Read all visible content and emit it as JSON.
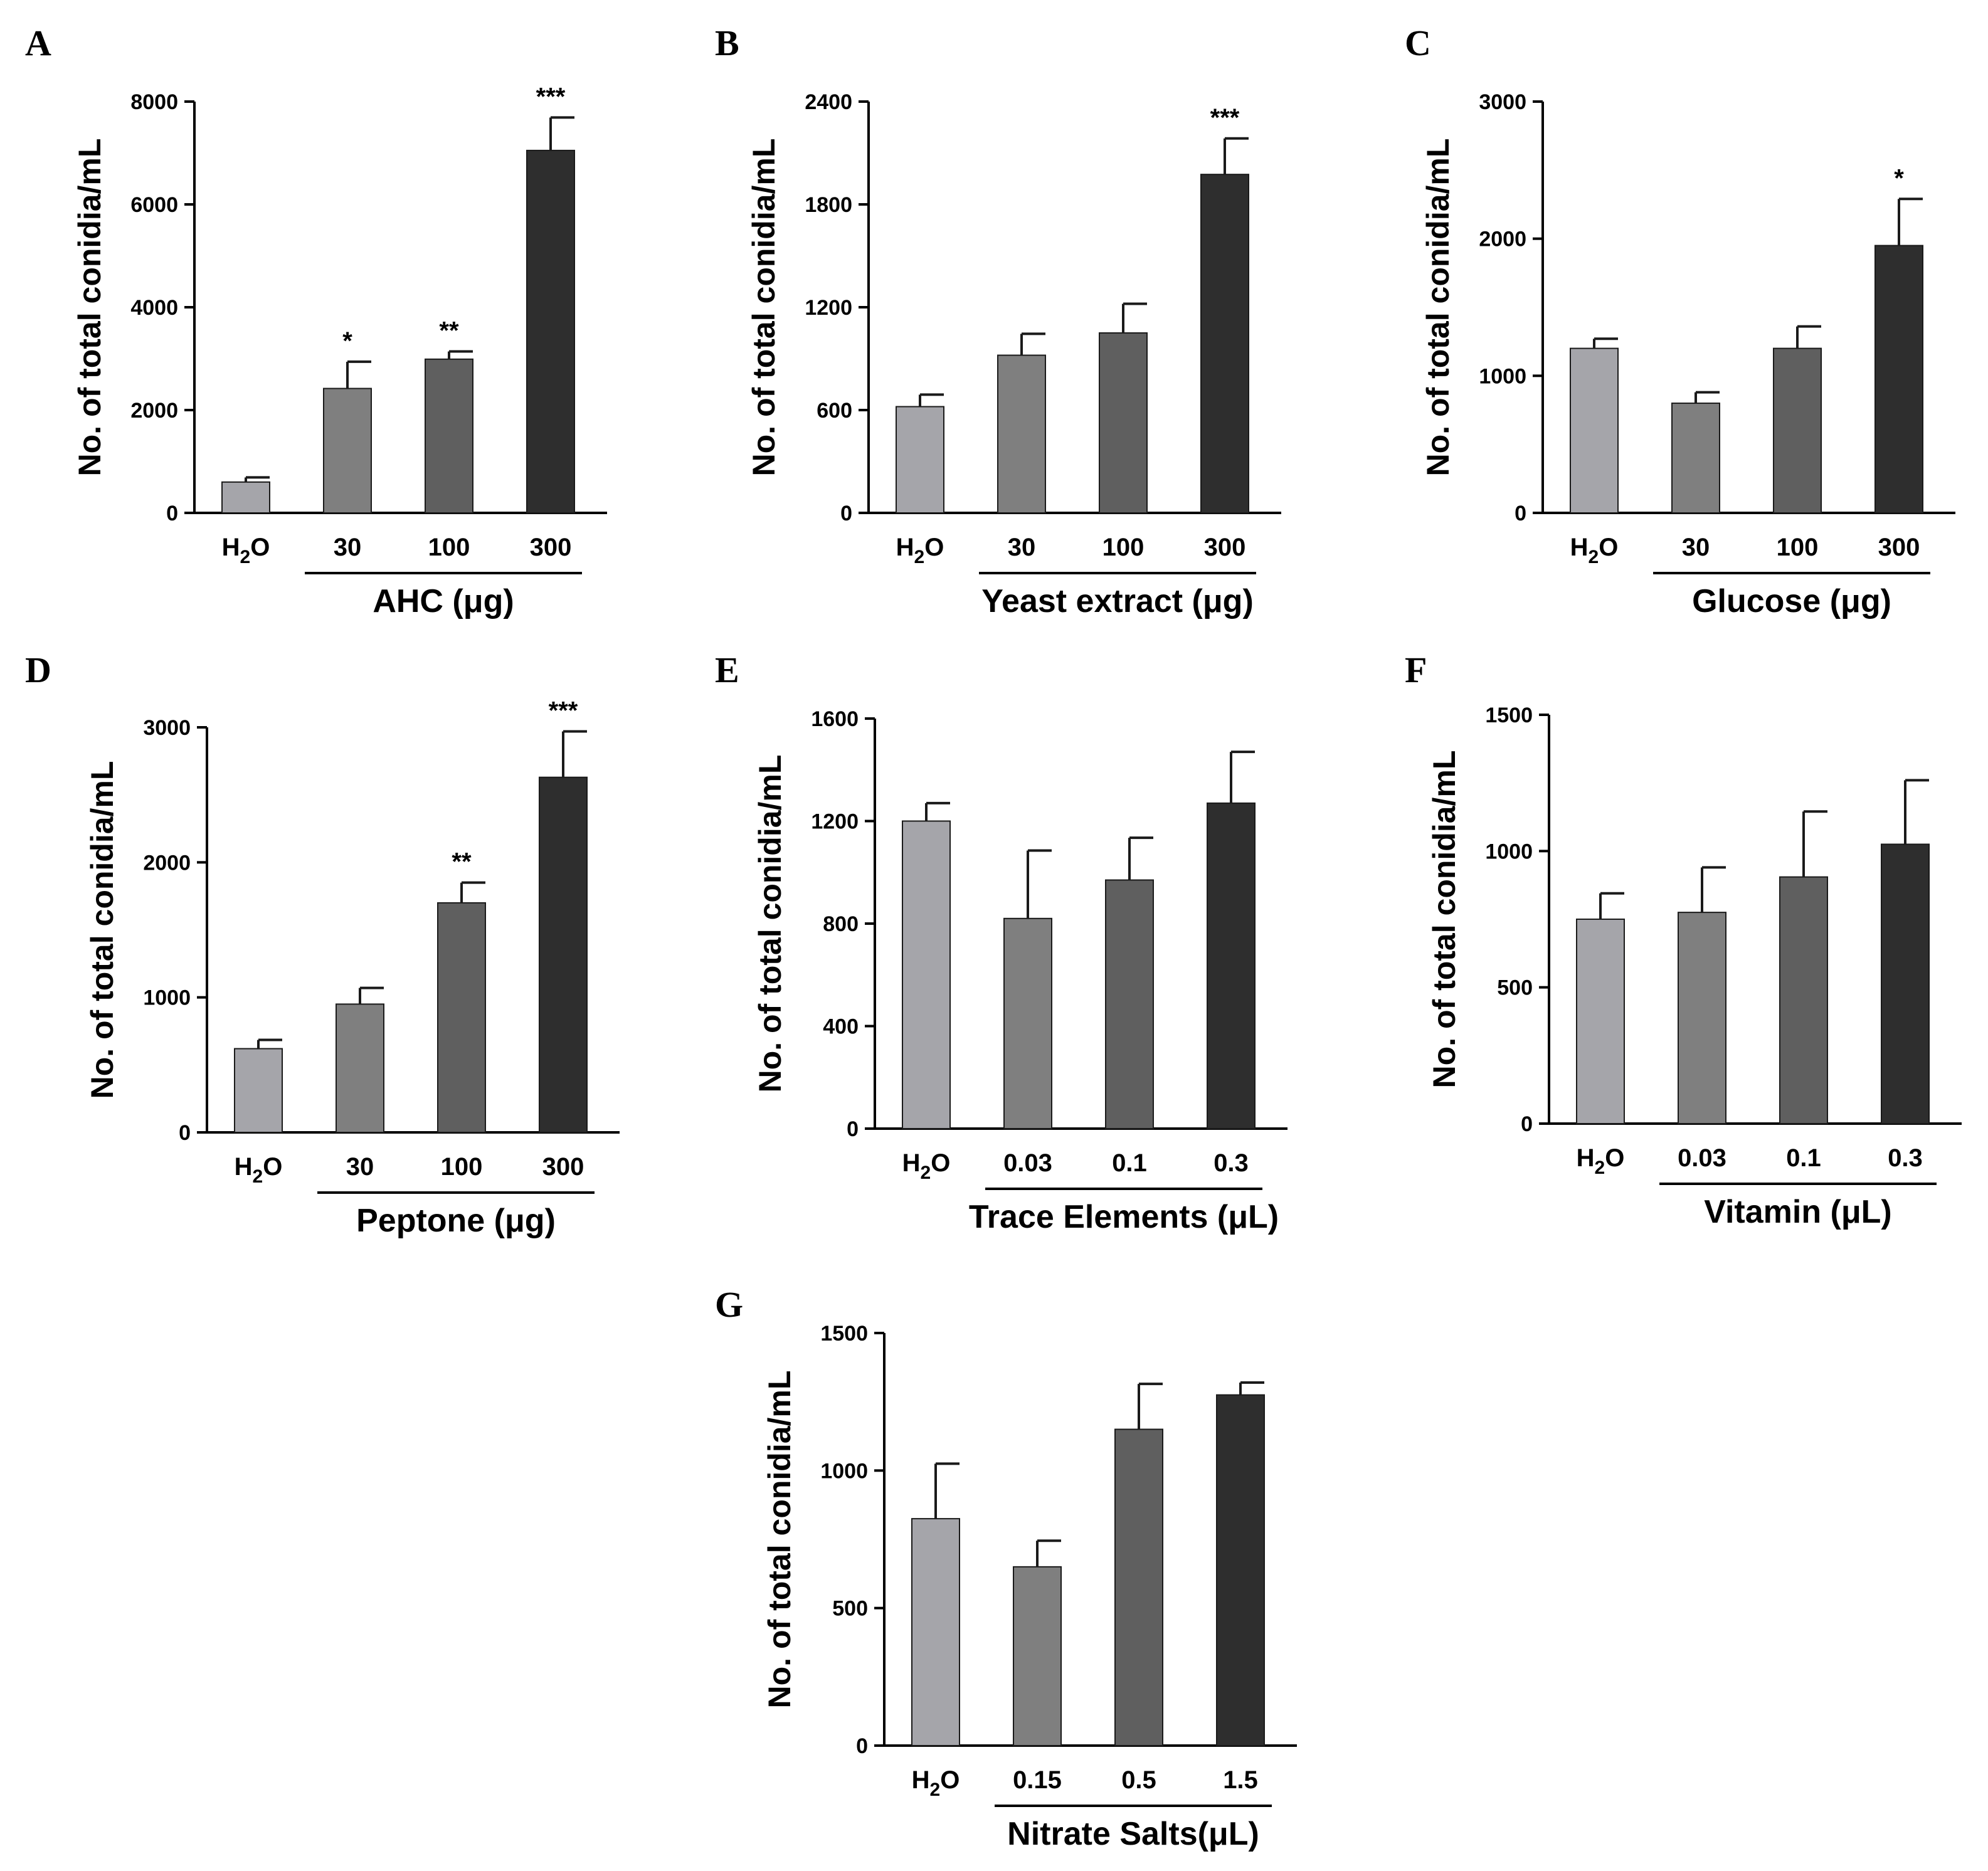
{
  "colors": {
    "bar_fills": [
      "#a5a5aa",
      "#7f7f7f",
      "#5f5f5f",
      "#2e2e2e"
    ],
    "bar_stroke": "#1a1a1a",
    "axis": "#000000"
  },
  "y_axis_label": "No. of total conidia/mL",
  "chart_data": [
    {
      "panel": "A",
      "type": "bar",
      "title": "",
      "xlabel": "AHC (μg)",
      "ylabel": "No. of total conidia/mL",
      "categories": [
        "H2O",
        "30",
        "100",
        "300"
      ],
      "values": [
        600,
        2420,
        2990,
        7050
      ],
      "errors": [
        90,
        520,
        150,
        640
      ],
      "significance": [
        "",
        "*",
        "**",
        "***"
      ],
      "ylim": [
        0,
        8000
      ],
      "yticks": [
        0,
        2000,
        4000,
        6000,
        8000
      ]
    },
    {
      "panel": "B",
      "type": "bar",
      "title": "",
      "xlabel": "Yeast extract (μg)",
      "ylabel": "No. of total conidia/mL",
      "categories": [
        "H2O",
        "30",
        "100",
        "300"
      ],
      "values": [
        620,
        920,
        1050,
        1975
      ],
      "errors": [
        70,
        125,
        170,
        210
      ],
      "significance": [
        "",
        "",
        "",
        "***"
      ],
      "ylim": [
        0,
        2400
      ],
      "yticks": [
        0,
        600,
        1200,
        1800,
        2400
      ]
    },
    {
      "panel": "C",
      "type": "bar",
      "title": "",
      "xlabel": "Glucose (μg)",
      "ylabel": "No. of total conidia/mL",
      "categories": [
        "H2O",
        "30",
        "100",
        "300"
      ],
      "values": [
        1200,
        800,
        1200,
        1950
      ],
      "errors": [
        70,
        80,
        160,
        340
      ],
      "significance": [
        "",
        "",
        "",
        "*"
      ],
      "ylim": [
        0,
        3000
      ],
      "yticks": [
        0,
        1000,
        2000,
        3000
      ]
    },
    {
      "panel": "D",
      "type": "bar",
      "title": "",
      "xlabel": "Peptone (μg)",
      "ylabel": "No. of total conidia/mL",
      "categories": [
        "H2O",
        "30",
        "100",
        "300"
      ],
      "values": [
        620,
        950,
        1700,
        2630
      ],
      "errors": [
        65,
        120,
        150,
        340
      ],
      "significance": [
        "",
        "",
        "**",
        "***"
      ],
      "ylim": [
        0,
        3000
      ],
      "yticks": [
        0,
        1000,
        2000,
        3000
      ]
    },
    {
      "panel": "E",
      "type": "bar",
      "title": "",
      "xlabel": "Trace Elements (μL)",
      "ylabel": "No. of total conidia/mL",
      "categories": [
        "H2O",
        "0.03",
        "0.1",
        "0.3"
      ],
      "values": [
        1200,
        820,
        970,
        1270
      ],
      "errors": [
        70,
        265,
        165,
        200
      ],
      "significance": [
        "",
        "",
        "",
        ""
      ],
      "ylim": [
        0,
        1600
      ],
      "yticks": [
        0,
        400,
        800,
        1200,
        1600
      ]
    },
    {
      "panel": "F",
      "type": "bar",
      "title": "",
      "xlabel": "Vitamin (μL)",
      "ylabel": "No. of total conidia/mL",
      "categories": [
        "H2O",
        "0.03",
        "0.1",
        "0.3"
      ],
      "values": [
        750,
        775,
        905,
        1025
      ],
      "errors": [
        95,
        165,
        240,
        235
      ],
      "significance": [
        "",
        "",
        "",
        ""
      ],
      "ylim": [
        0,
        1500
      ],
      "yticks": [
        0,
        500,
        1000,
        1500
      ]
    },
    {
      "panel": "G",
      "type": "bar",
      "title": "",
      "xlabel": "Nitrate Salts(μL)",
      "ylabel": "No. of total conidia/mL",
      "categories": [
        "H2O",
        "0.15",
        "0.5",
        "1.5"
      ],
      "values": [
        825,
        650,
        1150,
        1275
      ],
      "errors": [
        200,
        95,
        165,
        45
      ],
      "significance": [
        "",
        "",
        "",
        ""
      ],
      "ylim": [
        0,
        1500
      ],
      "yticks": [
        0,
        500,
        1000,
        1500
      ]
    }
  ]
}
